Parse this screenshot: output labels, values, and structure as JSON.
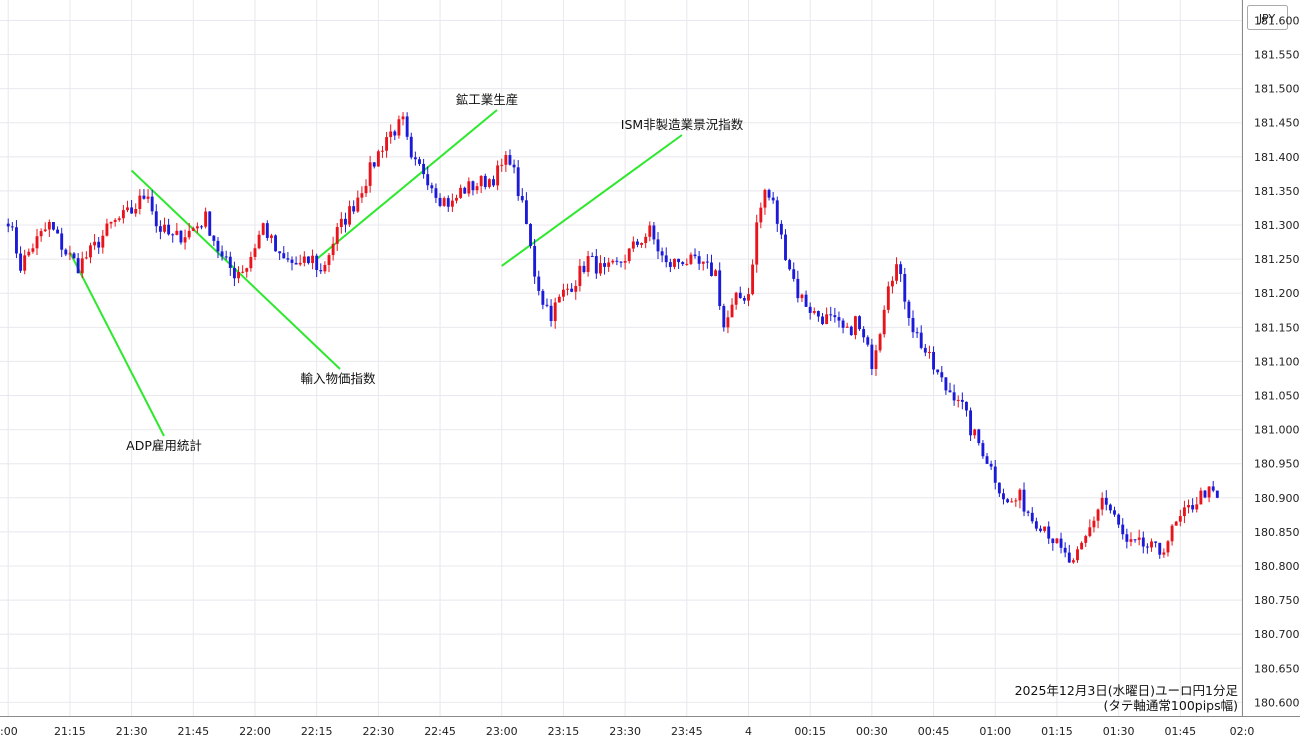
{
  "chart_data": {
    "type": "candlestick",
    "title": "2025年12月3日(水曜日)ユーロ円1分足",
    "subtitle": "(タテ軸通常100pips幅)",
    "currency_label": "JPY",
    "ylim": [
      180.58,
      181.63
    ],
    "y_ticks": [
      "181.600",
      "181.550",
      "181.500",
      "181.450",
      "181.400",
      "181.350",
      "181.300",
      "181.250",
      "181.200",
      "181.150",
      "181.100",
      "181.050",
      "181.000",
      "180.950",
      "180.900",
      "180.850",
      "180.800",
      "180.750",
      "180.700",
      "180.650",
      "180.600"
    ],
    "x_ticks": [
      ":00",
      "21:15",
      "21:30",
      "21:45",
      "22:00",
      "22:15",
      "22:30",
      "22:45",
      "23:00",
      "23:15",
      "23:30",
      "23:45",
      "4",
      "00:15",
      "00:30",
      "00:45",
      "01:00",
      "01:15",
      "01:30",
      "01:45",
      "02:0"
    ],
    "x_range_minutes": [
      -2,
      300
    ],
    "grid": true,
    "colors": {
      "up": "#e8141c",
      "down": "#1a1ad8",
      "annotation_line": "#2ee82e",
      "grid": "#e8e8ee"
    },
    "price_path": [
      [
        0,
        181.31
      ],
      [
        3,
        181.24
      ],
      [
        6,
        181.27
      ],
      [
        10,
        181.3
      ],
      [
        14,
        181.26
      ],
      [
        17,
        181.24
      ],
      [
        20,
        181.26
      ],
      [
        25,
        181.3
      ],
      [
        30,
        181.32
      ],
      [
        34,
        181.35
      ],
      [
        36,
        181.3
      ],
      [
        40,
        181.28
      ],
      [
        44,
        181.29
      ],
      [
        48,
        181.31
      ],
      [
        52,
        181.25
      ],
      [
        55,
        181.23
      ],
      [
        58,
        181.24
      ],
      [
        62,
        181.3
      ],
      [
        66,
        181.25
      ],
      [
        71,
        181.24
      ],
      [
        74,
        181.25
      ],
      [
        76,
        181.23
      ],
      [
        78,
        181.26
      ],
      [
        80,
        181.29
      ],
      [
        84,
        181.33
      ],
      [
        88,
        181.38
      ],
      [
        92,
        181.43
      ],
      [
        96,
        181.45
      ],
      [
        98,
        181.39
      ],
      [
        101,
        181.38
      ],
      [
        105,
        181.34
      ],
      [
        108,
        181.33
      ],
      [
        110,
        181.35
      ],
      [
        114,
        181.36
      ],
      [
        118,
        181.37
      ],
      [
        122,
        181.4
      ],
      [
        124,
        181.35
      ],
      [
        126,
        181.3
      ],
      [
        128,
        181.23
      ],
      [
        130,
        181.19
      ],
      [
        132,
        181.17
      ],
      [
        135,
        181.2
      ],
      [
        138,
        181.22
      ],
      [
        141,
        181.25
      ],
      [
        145,
        181.23
      ],
      [
        148,
        181.24
      ],
      [
        151,
        181.26
      ],
      [
        154,
        181.28
      ],
      [
        156,
        181.29
      ],
      [
        160,
        181.24
      ],
      [
        164,
        181.25
      ],
      [
        168,
        181.24
      ],
      [
        172,
        181.23
      ],
      [
        174,
        181.15
      ],
      [
        177,
        181.19
      ],
      [
        180,
        181.2
      ],
      [
        182,
        181.3
      ],
      [
        184,
        181.35
      ],
      [
        186,
        181.33
      ],
      [
        188,
        181.28
      ],
      [
        190,
        181.24
      ],
      [
        192,
        181.2
      ],
      [
        196,
        181.17
      ],
      [
        200,
        181.16
      ],
      [
        204,
        181.14
      ],
      [
        206,
        181.16
      ],
      [
        210,
        181.1
      ],
      [
        212,
        181.15
      ],
      [
        214,
        181.22
      ],
      [
        216,
        181.24
      ],
      [
        220,
        181.15
      ],
      [
        225,
        181.09
      ],
      [
        228,
        181.06
      ],
      [
        231,
        181.05
      ],
      [
        234,
        181.0
      ],
      [
        237,
        180.97
      ],
      [
        240,
        180.93
      ],
      [
        243,
        180.89
      ],
      [
        246,
        180.9
      ],
      [
        249,
        180.87
      ],
      [
        252,
        180.86
      ],
      [
        256,
        180.82
      ],
      [
        259,
        180.8
      ],
      [
        262,
        180.84
      ],
      [
        266,
        180.9
      ],
      [
        269,
        180.87
      ],
      [
        272,
        180.83
      ],
      [
        276,
        180.83
      ],
      [
        280,
        180.82
      ],
      [
        284,
        180.86
      ],
      [
        288,
        180.89
      ],
      [
        291,
        180.91
      ],
      [
        294,
        180.9
      ]
    ],
    "annotations": [
      {
        "label": "ADP雇用統計",
        "minute": 15,
        "price": 181.26
      },
      {
        "label": "輸入物価指数",
        "minute": 30,
        "price": 181.38
      },
      {
        "label": "鉱工業生産",
        "minute": 75,
        "price": 181.25
      },
      {
        "label": "ISM非製造業景況指数",
        "minute": 120,
        "price": 181.24
      }
    ]
  }
}
